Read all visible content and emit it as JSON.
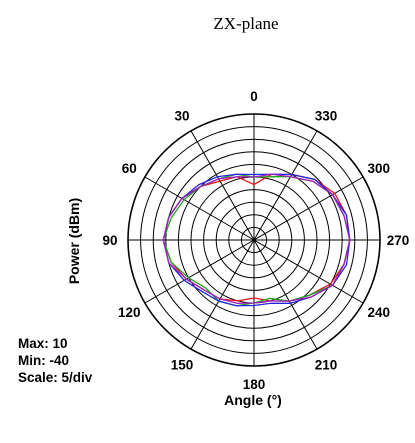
{
  "chart_data": {
    "type": "polar-line",
    "title": "ZX-plane",
    "radial_label": "Power  (dBm)",
    "angular_label": "Angle  (°)",
    "radial_range": [
      -40,
      10
    ],
    "radial_step": 5,
    "angle_direction": "counterclockwise",
    "zero_angle_at": "top",
    "angle_ticks": [
      0,
      30,
      60,
      90,
      120,
      150,
      180,
      210,
      240,
      270,
      300,
      330
    ],
    "stats": {
      "max": "Max: 10",
      "min": "Min: -40",
      "scale": "Scale: 5/div"
    },
    "angles": [
      0,
      15,
      30,
      45,
      60,
      75,
      90,
      105,
      120,
      135,
      150,
      165,
      180,
      195,
      210,
      225,
      240,
      255,
      270,
      285,
      300,
      315,
      330,
      345
    ],
    "series": [
      {
        "color": "#e8141c",
        "values": [
          -18,
          -14,
          -13,
          -10,
          -7,
          -5,
          -4,
          -6,
          -9,
          -12,
          -13,
          -15,
          -17,
          -15,
          -12,
          -9,
          -5,
          -3,
          -2,
          -2,
          -3,
          -6,
          -10,
          -13
        ]
      },
      {
        "color": "#1aa81a",
        "values": [
          -15,
          -13,
          -12,
          -10,
          -8,
          -6,
          -4,
          -6,
          -10,
          -13,
          -12,
          -13,
          -15,
          -16,
          -12,
          -9,
          -4,
          -3,
          -2,
          -3,
          -4,
          -7,
          -11,
          -14
        ]
      },
      {
        "color": "#2424e0",
        "values": [
          -14,
          -13,
          -11,
          -9,
          -7,
          -5,
          -4,
          -5,
          -8,
          -11,
          -12,
          -13,
          -14,
          -14,
          -11,
          -8,
          -4,
          -2,
          -2,
          -2,
          -4,
          -6,
          -10,
          -13
        ]
      },
      {
        "color": "#a020c0",
        "values": [
          -15,
          -14,
          -12,
          -10,
          -7,
          -5,
          -4,
          -5,
          -9,
          -12,
          -13,
          -14,
          -15,
          -15,
          -12,
          -8,
          -4,
          -3,
          -2,
          -3,
          -4,
          -7,
          -11,
          -13
        ]
      }
    ]
  }
}
